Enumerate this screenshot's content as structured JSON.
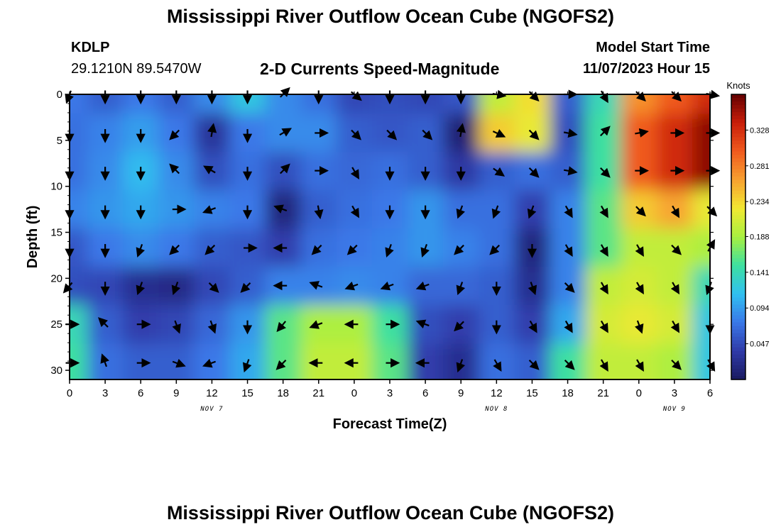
{
  "header": {
    "title": "Mississippi River Outflow Ocean Cube (NGOFS2)",
    "station": "KDLP",
    "coords": "29.1210N  89.5470W",
    "subtitle": "2-D Currents Speed-Magnitude",
    "model_start_label": "Model Start Time",
    "model_start_value": "11/07/2023 Hour 15"
  },
  "footer": {
    "title": "Mississippi River Outflow Ocean Cube (NGOFS2)"
  },
  "chart_data": {
    "type": "heatmap",
    "xlabel": "Forecast Time(Z)",
    "ylabel": "Depth (ft)",
    "x": [
      0,
      3,
      6,
      9,
      12,
      15,
      18,
      21,
      24,
      27,
      30,
      33,
      36,
      39,
      42,
      45,
      48,
      51,
      54
    ],
    "x_tick_labels": [
      "0",
      "3",
      "6",
      "9",
      "12",
      "15",
      "18",
      "21",
      "0",
      "3",
      "6",
      "9",
      "12",
      "15",
      "18",
      "21",
      "0",
      "3",
      "6"
    ],
    "xlim": [
      0,
      54
    ],
    "y": [
      0,
      4.2,
      8.3,
      12.5,
      16.7,
      20.8,
      25,
      29.2
    ],
    "y_tick_labels": [
      "0",
      "5",
      "10",
      "15",
      "20",
      "25",
      "30"
    ],
    "y_ticks": [
      0,
      5,
      10,
      15,
      20,
      25,
      30
    ],
    "ylim": [
      0,
      31
    ],
    "y_reversed": true,
    "date_labels": [
      {
        "x": 12,
        "text": "NOV 7"
      },
      {
        "x": 36,
        "text": "NOV 8"
      },
      {
        "x": 51,
        "text": "NOV 9"
      }
    ],
    "colorbar": {
      "label": "Knots",
      "ticks": [
        "0.047",
        "0.094",
        "0.141",
        "0.188",
        "0.234",
        "0.281",
        "0.328"
      ],
      "tick_values": [
        0.047,
        0.094,
        0.141,
        0.188,
        0.234,
        0.281,
        0.328
      ],
      "range": [
        0,
        0.375
      ],
      "colors": [
        "#1a1a60",
        "#2f3aa8",
        "#3a78e8",
        "#30c0f0",
        "#3ee0a0",
        "#a8f040",
        "#f2e832",
        "#f7a030",
        "#f05a1e",
        "#c81e0a",
        "#640000"
      ]
    },
    "speed": [
      [
        0.075,
        0.06,
        0.075,
        0.06,
        0.085,
        0.12,
        0.085,
        0.07,
        0.045,
        0.05,
        0.045,
        0.055,
        0.2,
        0.23,
        0.06,
        0.14,
        0.27,
        0.3,
        0.33
      ],
      [
        0.07,
        0.08,
        0.095,
        0.075,
        0.03,
        0.075,
        0.085,
        0.085,
        0.06,
        0.055,
        0.06,
        0.01,
        0.24,
        0.22,
        0.05,
        0.15,
        0.3,
        0.33,
        0.36
      ],
      [
        0.07,
        0.085,
        0.11,
        0.085,
        0.05,
        0.07,
        0.05,
        0.07,
        0.065,
        0.07,
        0.06,
        0.035,
        0.06,
        0.07,
        0.06,
        0.15,
        0.3,
        0.33,
        0.36
      ],
      [
        0.08,
        0.09,
        0.1,
        0.09,
        0.08,
        0.075,
        0.015,
        0.06,
        0.07,
        0.075,
        0.09,
        0.07,
        0.07,
        0.04,
        0.08,
        0.16,
        0.24,
        0.26,
        0.22
      ],
      [
        0.055,
        0.075,
        0.085,
        0.075,
        0.06,
        0.055,
        0.04,
        0.07,
        0.075,
        0.08,
        0.09,
        0.08,
        0.07,
        0.015,
        0.08,
        0.16,
        0.2,
        0.2,
        0.19
      ],
      [
        0.05,
        0.045,
        0.025,
        0.02,
        0.045,
        0.06,
        0.08,
        0.08,
        0.085,
        0.08,
        0.065,
        0.065,
        0.06,
        0.025,
        0.08,
        0.2,
        0.21,
        0.2,
        0.14
      ],
      [
        0.14,
        0.06,
        0.04,
        0.045,
        0.065,
        0.09,
        0.16,
        0.19,
        0.19,
        0.15,
        0.05,
        0.04,
        0.06,
        0.04,
        0.1,
        0.21,
        0.22,
        0.21,
        0.12
      ],
      [
        0.15,
        0.07,
        0.06,
        0.06,
        0.075,
        0.1,
        0.16,
        0.2,
        0.2,
        0.16,
        0.04,
        0.025,
        0.07,
        0.06,
        0.15,
        0.2,
        0.2,
        0.19,
        0.12
      ]
    ],
    "directions": [
      [
        200,
        180,
        180,
        180,
        180,
        180,
        45,
        180,
        130,
        180,
        180,
        180,
        100,
        135,
        90,
        150,
        135,
        135,
        100
      ],
      [
        180,
        180,
        180,
        225,
        10,
        180,
        60,
        90,
        135,
        135,
        135,
        10,
        115,
        135,
        100,
        45,
        80,
        90,
        90
      ],
      [
        180,
        180,
        180,
        315,
        300,
        180,
        45,
        90,
        150,
        180,
        180,
        180,
        125,
        135,
        100,
        135,
        90,
        90,
        90
      ],
      [
        180,
        180,
        180,
        90,
        250,
        180,
        290,
        170,
        150,
        180,
        180,
        200,
        200,
        200,
        150,
        150,
        135,
        150,
        135
      ],
      [
        180,
        180,
        200,
        225,
        225,
        90,
        270,
        225,
        225,
        200,
        200,
        225,
        225,
        180,
        150,
        150,
        150,
        135,
        30
      ],
      [
        220,
        180,
        200,
        200,
        135,
        225,
        270,
        290,
        250,
        250,
        250,
        200,
        180,
        160,
        135,
        150,
        150,
        150,
        200
      ],
      [
        90,
        315,
        90,
        160,
        160,
        180,
        220,
        250,
        270,
        90,
        290,
        225,
        180,
        150,
        150,
        150,
        160,
        150,
        180
      ],
      [
        90,
        340,
        90,
        110,
        250,
        200,
        225,
        270,
        270,
        90,
        270,
        200,
        150,
        135,
        135,
        150,
        150,
        135,
        150
      ]
    ]
  }
}
